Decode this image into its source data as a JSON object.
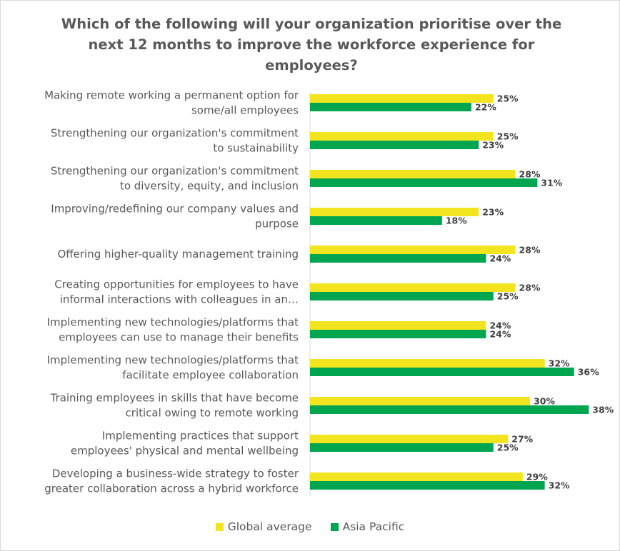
{
  "chart_data": {
    "type": "bar",
    "orientation": "horizontal",
    "title": "Which of the following will your organization prioritise over the next 12 months to improve the workforce experience for employees?",
    "categories": [
      [
        "Making remote working a permanent option for",
        "some/all employees"
      ],
      [
        "Strengthening our organization's commitment",
        "to sustainability"
      ],
      [
        "Strengthening our organization's commitment",
        "to diversity, equity, and inclusion"
      ],
      [
        "Improving/redefining our company values and",
        "purpose"
      ],
      [
        "Offering higher-quality management training"
      ],
      [
        "Creating opportunities for employees to have",
        "informal interactions with colleagues in an…"
      ],
      [
        "Implementing new technologies/platforms that",
        "employees can use to manage their benefits"
      ],
      [
        "Implementing new technologies/platforms that",
        "facilitate employee collaboration"
      ],
      [
        "Training employees in skills that have become",
        "critical owing to remote working"
      ],
      [
        "Implementing practices that support",
        "employees' physical and mental wellbeing"
      ],
      [
        "Developing a business-wide strategy to foster",
        "greater collaboration across a hybrid workforce"
      ]
    ],
    "series": [
      {
        "name": "Global average",
        "color": "#f2e51f",
        "values": [
          25,
          25,
          28,
          23,
          28,
          28,
          24,
          32,
          30,
          27,
          29
        ]
      },
      {
        "name": "Asia Pacific",
        "color": "#00a54f",
        "values": [
          22,
          23,
          31,
          18,
          24,
          25,
          24,
          36,
          38,
          25,
          32
        ]
      }
    ],
    "value_suffix": "%",
    "xlim": [
      0,
      40
    ],
    "grid": false,
    "legend_position": "bottom"
  },
  "legend": {
    "global_label": "Global average",
    "apac_label": "Asia Pacific"
  }
}
